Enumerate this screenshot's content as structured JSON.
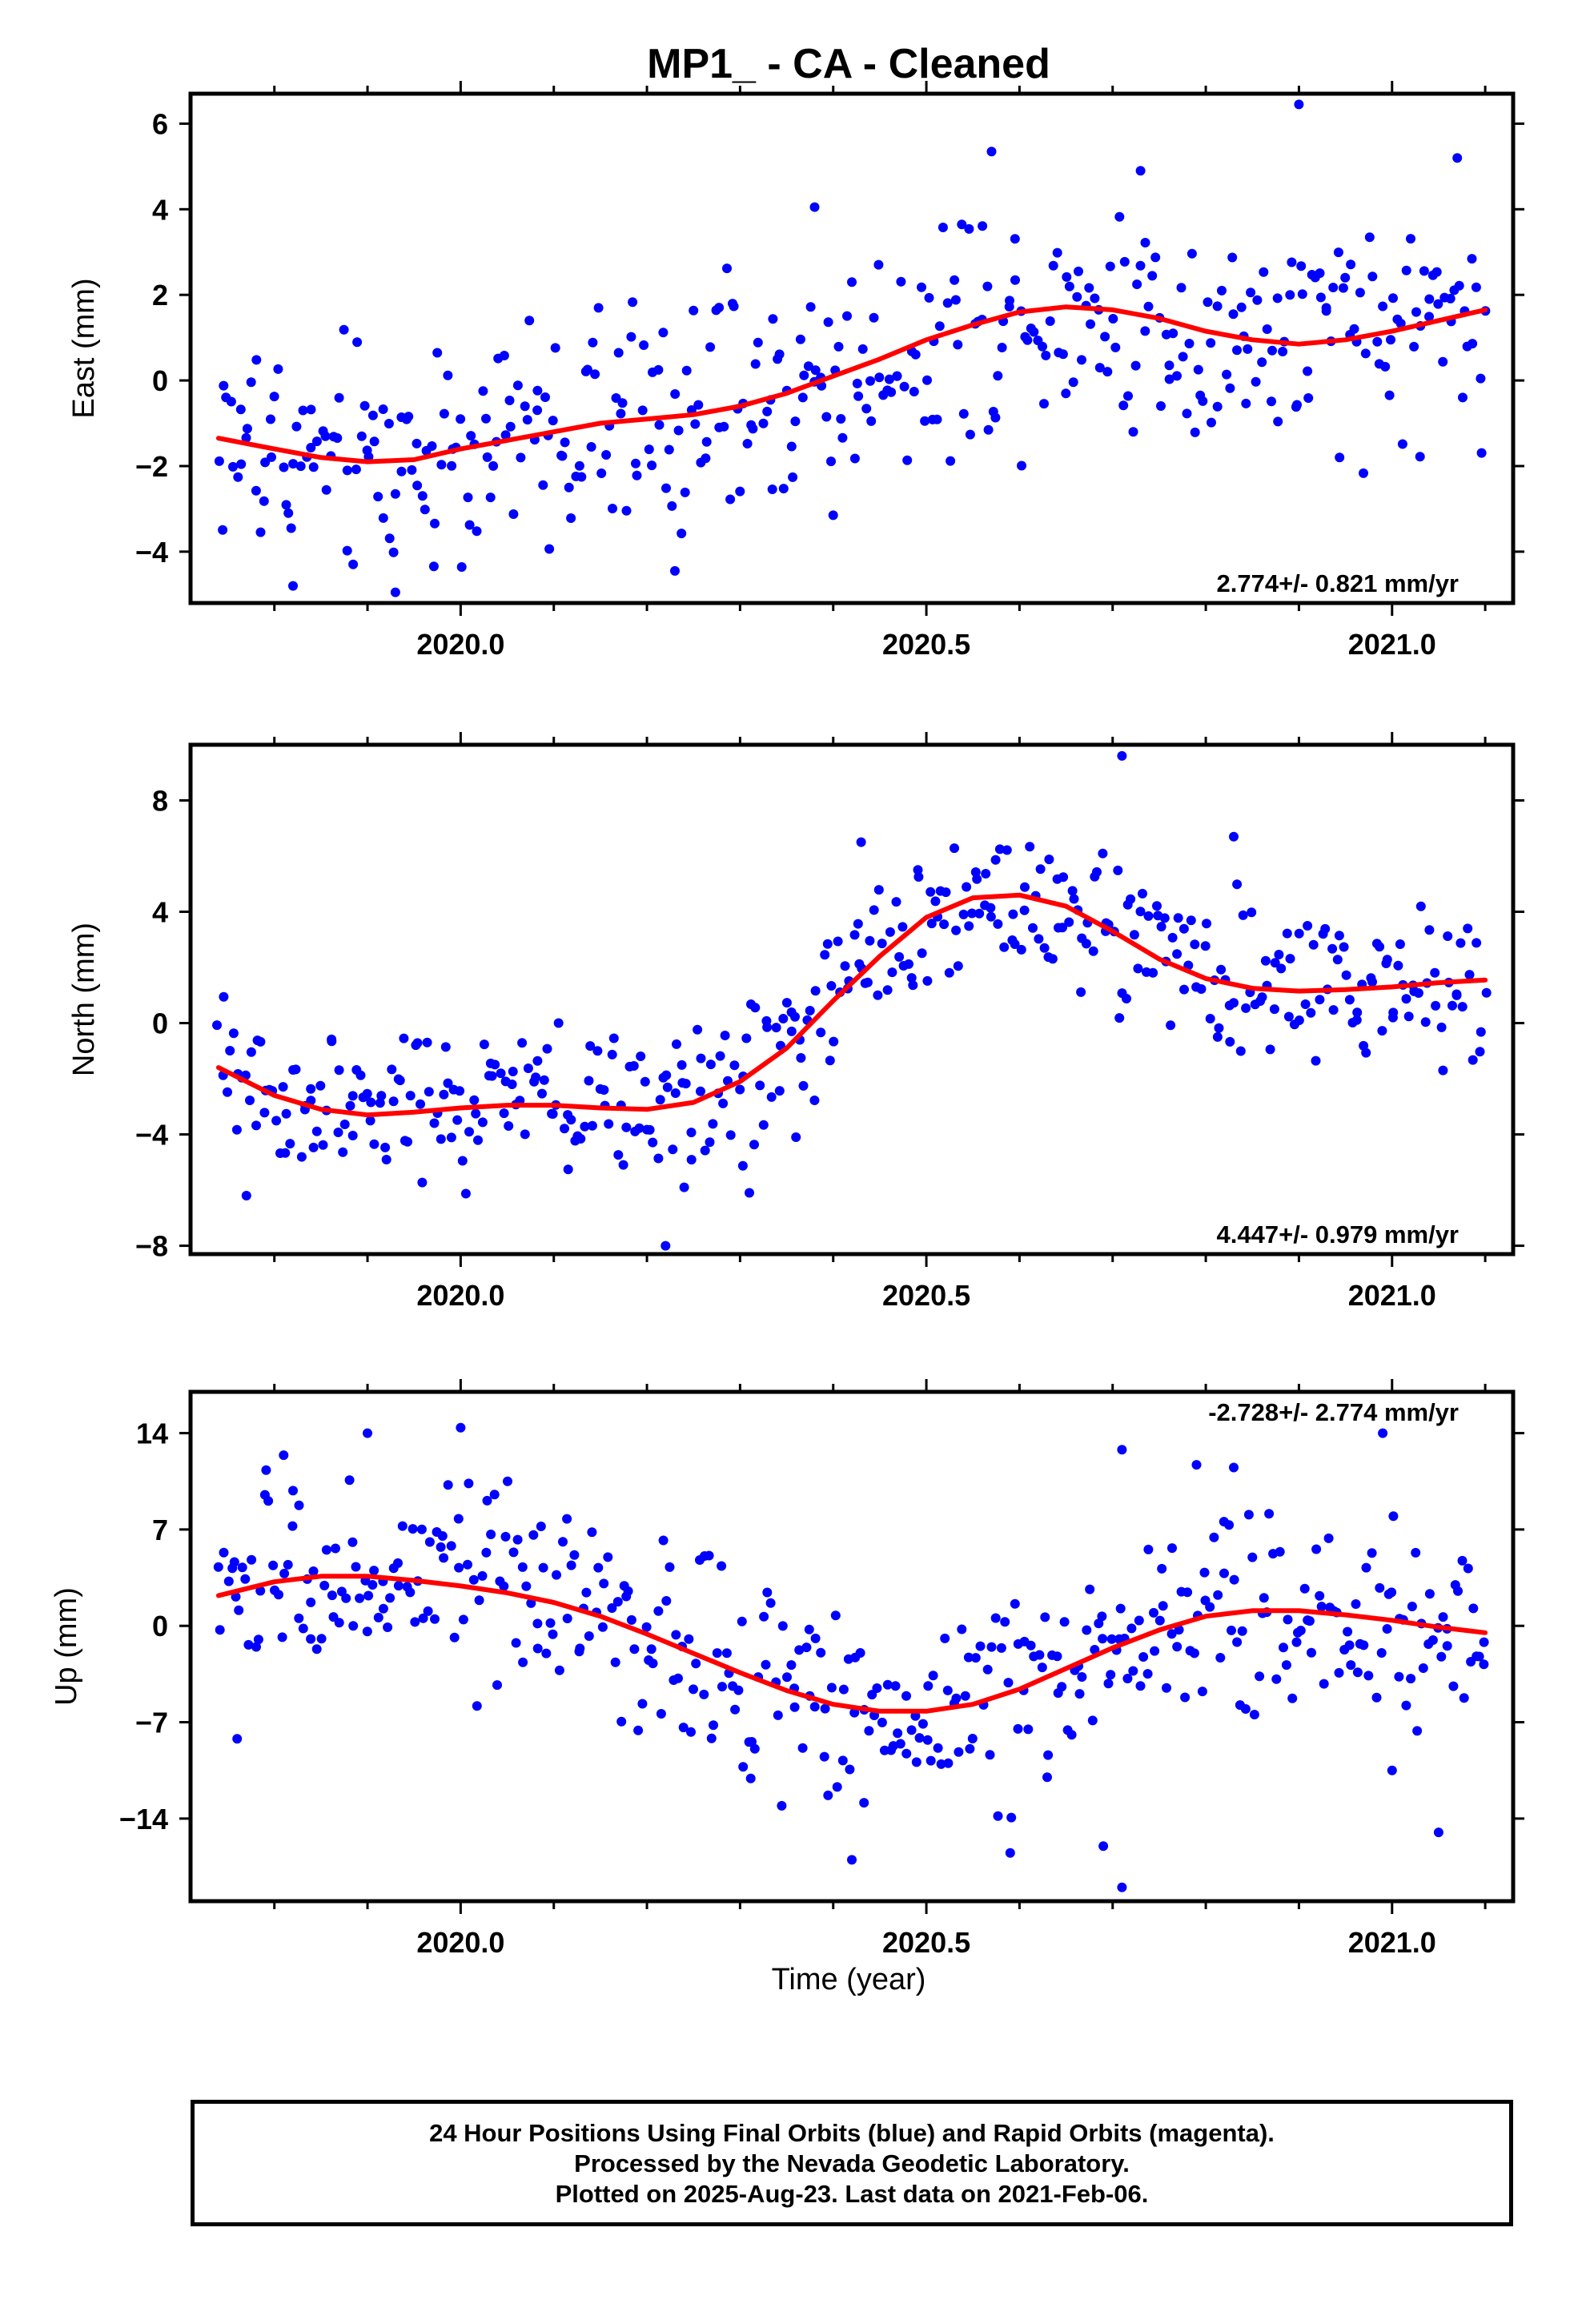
{
  "title": "MP1_  - CA - Cleaned",
  "xlabel": "Time (year)",
  "footer": {
    "line1": "24 Hour Positions Using Final Orbits (blue) and Rapid Orbits (magenta).",
    "line2": "Processed by the Nevada Geodetic Laboratory.",
    "line3": "Plotted on 2025-Aug-23. Last data on 2021-Feb-06."
  },
  "colors": {
    "points": "#0000ff",
    "fit": "#ff0000",
    "frame": "#000000"
  },
  "chart_data": [
    {
      "type": "scatter",
      "ylabel": "East (mm)",
      "rate_label": "2.774+/- 0.821 mm/yr",
      "rate_position": "bottom-right",
      "xlim": [
        2019.71,
        2021.13
      ],
      "ylim": [
        -5.2,
        6.7
      ],
      "xticks": [
        2020.0,
        2020.5,
        2021.0
      ],
      "xtick_labels": [
        "2020.0",
        "2020.5",
        "2021.0"
      ],
      "yticks": [
        -4,
        -2,
        0,
        2,
        4,
        6
      ],
      "ytick_labels": [
        "−4",
        "−2",
        "0",
        "2",
        "4",
        "6"
      ],
      "fit": {
        "x": [
          2019.74,
          2019.8,
          2019.85,
          2019.9,
          2019.95,
          2020.0,
          2020.05,
          2020.1,
          2020.15,
          2020.2,
          2020.25,
          2020.3,
          2020.35,
          2020.4,
          2020.45,
          2020.5,
          2020.55,
          2020.6,
          2020.65,
          2020.7,
          2020.75,
          2020.8,
          2020.85,
          2020.9,
          2020.95,
          2021.0,
          2021.05,
          2021.1
        ],
        "y": [
          -1.35,
          -1.6,
          -1.8,
          -1.9,
          -1.85,
          -1.6,
          -1.4,
          -1.2,
          -1.0,
          -0.9,
          -0.8,
          -0.6,
          -0.3,
          0.1,
          0.5,
          0.95,
          1.3,
          1.6,
          1.72,
          1.65,
          1.45,
          1.15,
          0.95,
          0.85,
          0.95,
          1.15,
          1.4,
          1.65
        ]
      },
      "points": {
        "amplitude": 1.35,
        "outliers": [
          {
            "x": 2020.57,
            "y": 5.35
          },
          {
            "x": 2020.9,
            "y": 6.45
          },
          {
            "x": 2021.07,
            "y": 5.2
          },
          {
            "x": 2019.93,
            "y": -4.95
          },
          {
            "x": 2019.82,
            "y": -4.8
          },
          {
            "x": 2020.23,
            "y": -4.45
          },
          {
            "x": 2020.4,
            "y": -3.15
          },
          {
            "x": 2020.38,
            "y": 4.05
          },
          {
            "x": 2020.73,
            "y": 4.9
          }
        ]
      }
    },
    {
      "type": "scatter",
      "ylabel": "North (mm)",
      "rate_label": "4.447+/- 0.979 mm/yr",
      "rate_position": "bottom-right",
      "xlim": [
        2019.71,
        2021.13
      ],
      "ylim": [
        -8.3,
        10.0
      ],
      "xticks": [
        2020.0,
        2020.5,
        2021.0
      ],
      "xtick_labels": [
        "2020.0",
        "2020.5",
        "2021.0"
      ],
      "yticks": [
        -8,
        -4,
        0,
        4,
        8
      ],
      "ytick_labels": [
        "−8",
        "−4",
        "0",
        "4",
        "8"
      ],
      "fit": {
        "x": [
          2019.74,
          2019.8,
          2019.85,
          2019.9,
          2019.95,
          2020.0,
          2020.05,
          2020.1,
          2020.15,
          2020.2,
          2020.25,
          2020.3,
          2020.35,
          2020.4,
          2020.45,
          2020.5,
          2020.55,
          2020.6,
          2020.65,
          2020.7,
          2020.75,
          2020.8,
          2020.85,
          2020.9,
          2020.95,
          2021.0,
          2021.05,
          2021.1
        ],
        "y": [
          -1.6,
          -2.6,
          -3.1,
          -3.3,
          -3.2,
          -3.05,
          -2.95,
          -2.95,
          -3.05,
          -3.1,
          -2.85,
          -2.1,
          -0.9,
          0.8,
          2.4,
          3.8,
          4.5,
          4.6,
          4.2,
          3.3,
          2.3,
          1.6,
          1.25,
          1.15,
          1.2,
          1.3,
          1.45,
          1.55
        ]
      },
      "points": {
        "amplitude": 1.4,
        "outliers": [
          {
            "x": 2020.71,
            "y": 9.6
          },
          {
            "x": 2020.22,
            "y": -8.0
          },
          {
            "x": 2020.31,
            "y": -6.1
          },
          {
            "x": 2020.24,
            "y": -5.9
          },
          {
            "x": 2019.77,
            "y": -6.2
          },
          {
            "x": 2020.83,
            "y": 6.7
          },
          {
            "x": 2020.43,
            "y": 6.5
          },
          {
            "x": 2020.36,
            "y": -4.1
          }
        ]
      }
    },
    {
      "type": "scatter",
      "ylabel": "Up (mm)",
      "rate_label": "-2.728+/- 2.774 mm/yr",
      "rate_position": "top-right",
      "xlim": [
        2019.71,
        2021.13
      ],
      "ylim": [
        -20.0,
        17.0
      ],
      "xticks": [
        2020.0,
        2020.5,
        2021.0
      ],
      "xtick_labels": [
        "2020.0",
        "2020.5",
        "2021.0"
      ],
      "yticks": [
        -14,
        -7,
        0,
        7,
        14
      ],
      "ytick_labels": [
        "−14",
        "−7",
        "0",
        "7",
        "14"
      ],
      "xlabel": "Time (year)",
      "fit": {
        "x": [
          2019.74,
          2019.8,
          2019.85,
          2019.9,
          2019.95,
          2020.0,
          2020.05,
          2020.1,
          2020.15,
          2020.2,
          2020.25,
          2020.3,
          2020.35,
          2020.4,
          2020.45,
          2020.5,
          2020.55,
          2020.6,
          2020.65,
          2020.7,
          2020.75,
          2020.8,
          2020.85,
          2020.9,
          2020.95,
          2021.0,
          2021.05,
          2021.1
        ],
        "y": [
          2.2,
          3.2,
          3.6,
          3.6,
          3.3,
          2.9,
          2.4,
          1.7,
          0.7,
          -0.6,
          -2.0,
          -3.4,
          -4.7,
          -5.7,
          -6.2,
          -6.2,
          -5.7,
          -4.6,
          -3.1,
          -1.6,
          -0.3,
          0.7,
          1.1,
          1.1,
          0.8,
          0.4,
          -0.1,
          -0.5
        ]
      },
      "points": {
        "amplitude": 3.6,
        "outliers": [
          {
            "x": 2020.71,
            "y": -19.0
          },
          {
            "x": 2020.42,
            "y": -17.0
          },
          {
            "x": 2020.69,
            "y": -16.0
          },
          {
            "x": 2020.59,
            "y": -16.5
          },
          {
            "x": 2021.05,
            "y": -15.0
          },
          {
            "x": 2020.71,
            "y": 12.8
          },
          {
            "x": 2020.83,
            "y": 11.5
          },
          {
            "x": 2020.99,
            "y": 14.0
          },
          {
            "x": 2020.79,
            "y": 11.7
          },
          {
            "x": 2019.9,
            "y": 14.0
          },
          {
            "x": 2020.0,
            "y": 14.4
          },
          {
            "x": 2019.81,
            "y": 12.4
          },
          {
            "x": 2019.76,
            "y": -8.2
          },
          {
            "x": 2021.0,
            "y": -10.5
          }
        ]
      }
    }
  ]
}
